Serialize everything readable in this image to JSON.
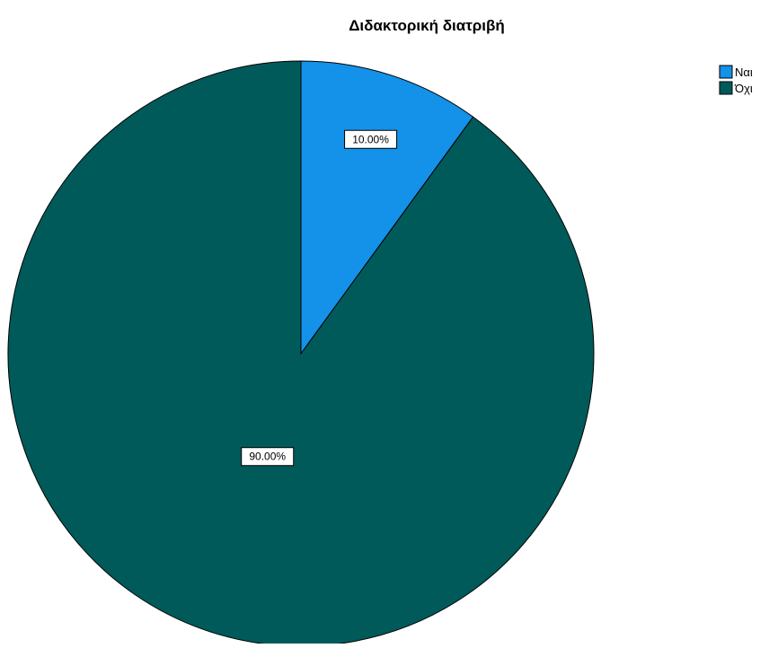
{
  "chart_data": {
    "type": "pie",
    "title": "Διδακτορική διατριβή",
    "slices": [
      {
        "label": "Ναι",
        "value": 10.0,
        "display": "10.00%",
        "color": "#1491e8"
      },
      {
        "label": "Όχι",
        "value": 90.0,
        "display": "90.00%",
        "color": "#005a5a"
      }
    ],
    "start_angle_deg": 0,
    "direction": "clockwise",
    "legend_position": "top-right"
  }
}
